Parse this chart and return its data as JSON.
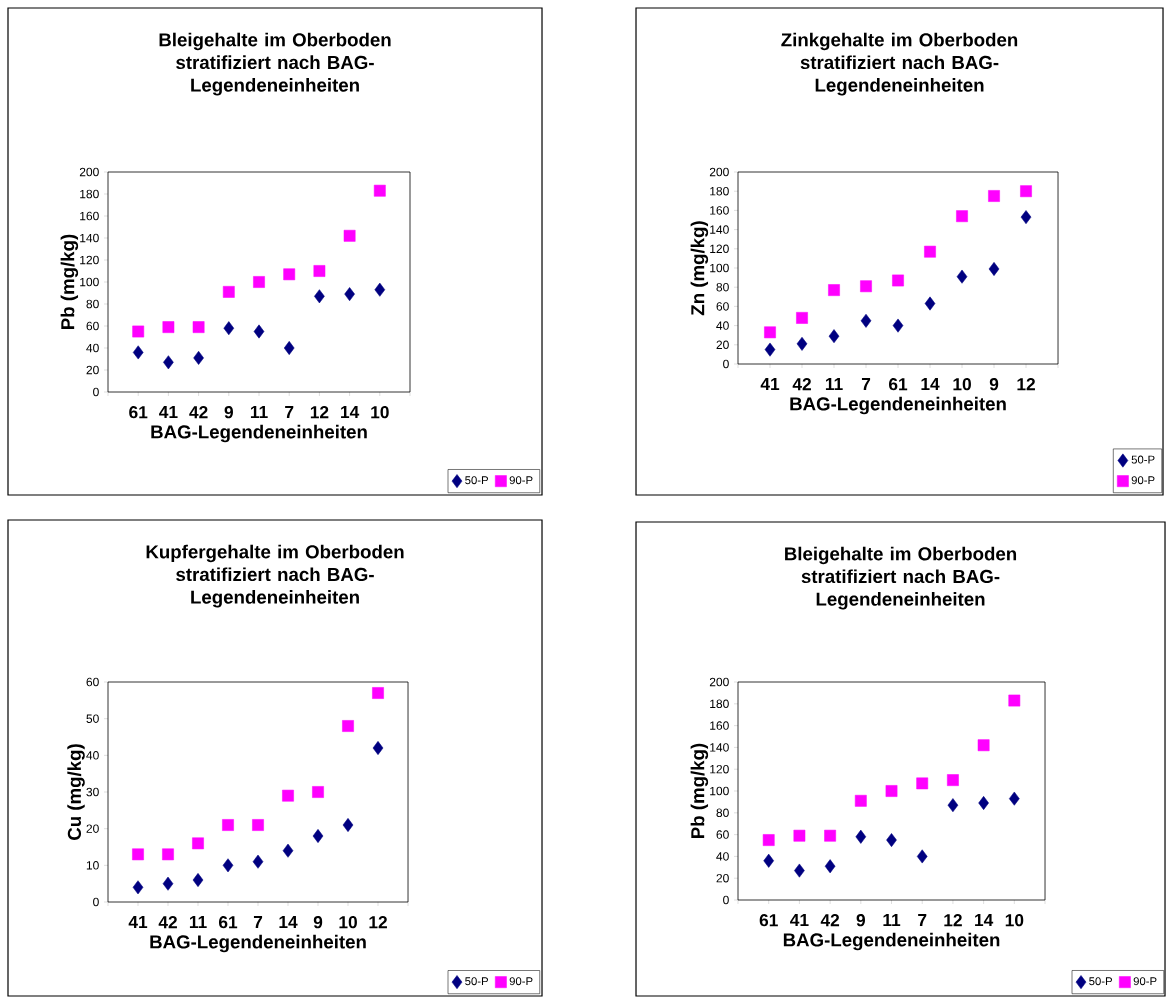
{
  "chart_data": [
    {
      "type": "scatter",
      "title": "Bleigehalte im Oberboden stratifiziert nach BAG-Legendeneinheiten",
      "xlabel": "BAG-Legendeneinheiten",
      "ylabel": "Pb (mg/kg)",
      "categories": [
        "61",
        "41",
        "42",
        "9",
        "11",
        "7",
        "12",
        "14",
        "10"
      ],
      "ylim": [
        0,
        200
      ],
      "yticks": [
        0,
        20,
        40,
        60,
        80,
        100,
        120,
        140,
        160,
        180,
        200
      ],
      "legend": "bottom right",
      "grid": false,
      "series": [
        {
          "name": "50-P",
          "color": "#000080",
          "marker": "diamond",
          "values": [
            36,
            27,
            31,
            58,
            55,
            40,
            87,
            89,
            93
          ]
        },
        {
          "name": "90-P",
          "color": "#ff00ff",
          "marker": "square",
          "values": [
            55,
            59,
            59,
            91,
            100,
            107,
            110,
            142,
            183
          ]
        }
      ]
    },
    {
      "type": "scatter",
      "title": "Zinkgehalte im Oberboden stratifiziert nach BAG-Legendeneinheiten",
      "xlabel": "BAG-Legendeneinheiten",
      "ylabel": "Zn (mg/kg)",
      "categories": [
        "41",
        "42",
        "11",
        "7",
        "61",
        "14",
        "10",
        "9",
        "12"
      ],
      "ylim": [
        0,
        200
      ],
      "yticks": [
        0,
        20,
        40,
        60,
        80,
        100,
        120,
        140,
        160,
        180,
        200
      ],
      "legend": "bottom right",
      "grid": false,
      "series": [
        {
          "name": "50-P",
          "color": "#000080",
          "marker": "diamond",
          "values": [
            15,
            21,
            29,
            45,
            40,
            63,
            91,
            99,
            153
          ]
        },
        {
          "name": "90-P",
          "color": "#ff00ff",
          "marker": "square",
          "values": [
            33,
            48,
            77,
            81,
            87,
            117,
            154,
            175,
            180
          ]
        }
      ]
    },
    {
      "type": "scatter",
      "title": "Kupfergehalte im Oberboden stratifiziert nach BAG-Legendeneinheiten",
      "xlabel": "BAG-Legendeneinheiten",
      "ylabel": "Cu (mg/kg)",
      "categories": [
        "41",
        "42",
        "11",
        "61",
        "7",
        "14",
        "9",
        "10",
        "12"
      ],
      "ylim": [
        0,
        60
      ],
      "yticks": [
        0,
        10,
        20,
        30,
        40,
        50,
        60
      ],
      "legend": "bottom right",
      "grid": false,
      "series": [
        {
          "name": "50-P",
          "color": "#000080",
          "marker": "diamond",
          "values": [
            4,
            5,
            6,
            10,
            11,
            14,
            18,
            21,
            42
          ]
        },
        {
          "name": "90-P",
          "color": "#ff00ff",
          "marker": "square",
          "values": [
            13,
            13,
            16,
            21,
            21,
            29,
            30,
            48,
            57
          ]
        }
      ]
    },
    {
      "type": "scatter",
      "title": "Bleigehalte im Oberboden stratifiziert nach BAG-Legendeneinheiten",
      "xlabel": "BAG-Legendeneinheiten",
      "ylabel": "Pb (mg/kg)",
      "categories": [
        "61",
        "41",
        "42",
        "9",
        "11",
        "7",
        "12",
        "14",
        "10"
      ],
      "ylim": [
        0,
        200
      ],
      "yticks": [
        0,
        20,
        40,
        60,
        80,
        100,
        120,
        140,
        160,
        180,
        200
      ],
      "legend": "bottom right",
      "grid": false,
      "series": [
        {
          "name": "50-P",
          "color": "#000080",
          "marker": "diamond",
          "values": [
            36,
            27,
            31,
            58,
            55,
            40,
            87,
            89,
            93
          ]
        },
        {
          "name": "90-P",
          "color": "#ff00ff",
          "marker": "square",
          "values": [
            55,
            59,
            59,
            91,
            100,
            107,
            110,
            142,
            183
          ]
        }
      ]
    }
  ]
}
